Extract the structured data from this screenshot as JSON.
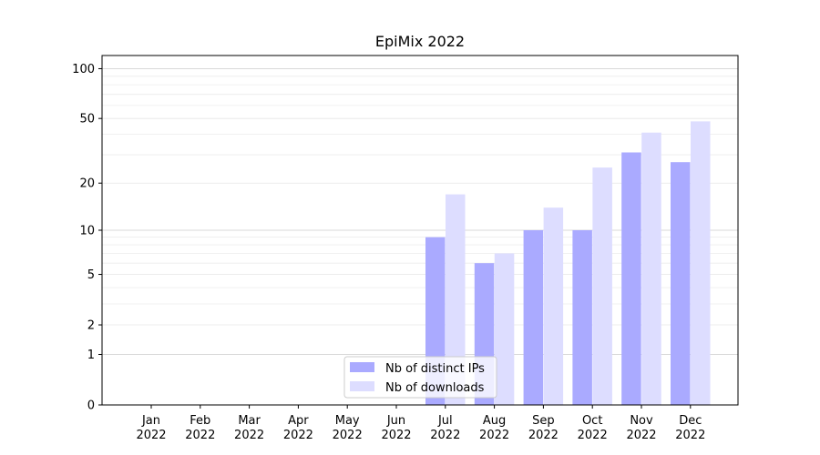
{
  "chart_data": {
    "type": "bar",
    "title": "EpiMix 2022",
    "xlabel": "",
    "ylabel": "",
    "categories": [
      [
        "Jan",
        "2022"
      ],
      [
        "Feb",
        "2022"
      ],
      [
        "Mar",
        "2022"
      ],
      [
        "Apr",
        "2022"
      ],
      [
        "May",
        "2022"
      ],
      [
        "Jun",
        "2022"
      ],
      [
        "Jul",
        "2022"
      ],
      [
        "Aug",
        "2022"
      ],
      [
        "Sep",
        "2022"
      ],
      [
        "Oct",
        "2022"
      ],
      [
        "Nov",
        "2022"
      ],
      [
        "Dec",
        "2022"
      ]
    ],
    "series": [
      {
        "name": "Nb of distinct IPs",
        "color": "#aaaaff",
        "values": [
          0,
          0,
          0,
          0,
          0,
          0,
          9,
          6,
          10,
          10,
          31,
          27
        ]
      },
      {
        "name": "Nb of downloads",
        "color": "#ddddff",
        "values": [
          0,
          0,
          0,
          0,
          0,
          0,
          17,
          7,
          14,
          25,
          41,
          48
        ]
      }
    ],
    "yscale": "log(1+y)",
    "ylim": [
      0,
      120
    ],
    "yticks": [
      0,
      1,
      2,
      5,
      10,
      20,
      50,
      100
    ],
    "grid": true,
    "legend_position": "lower-center"
  }
}
